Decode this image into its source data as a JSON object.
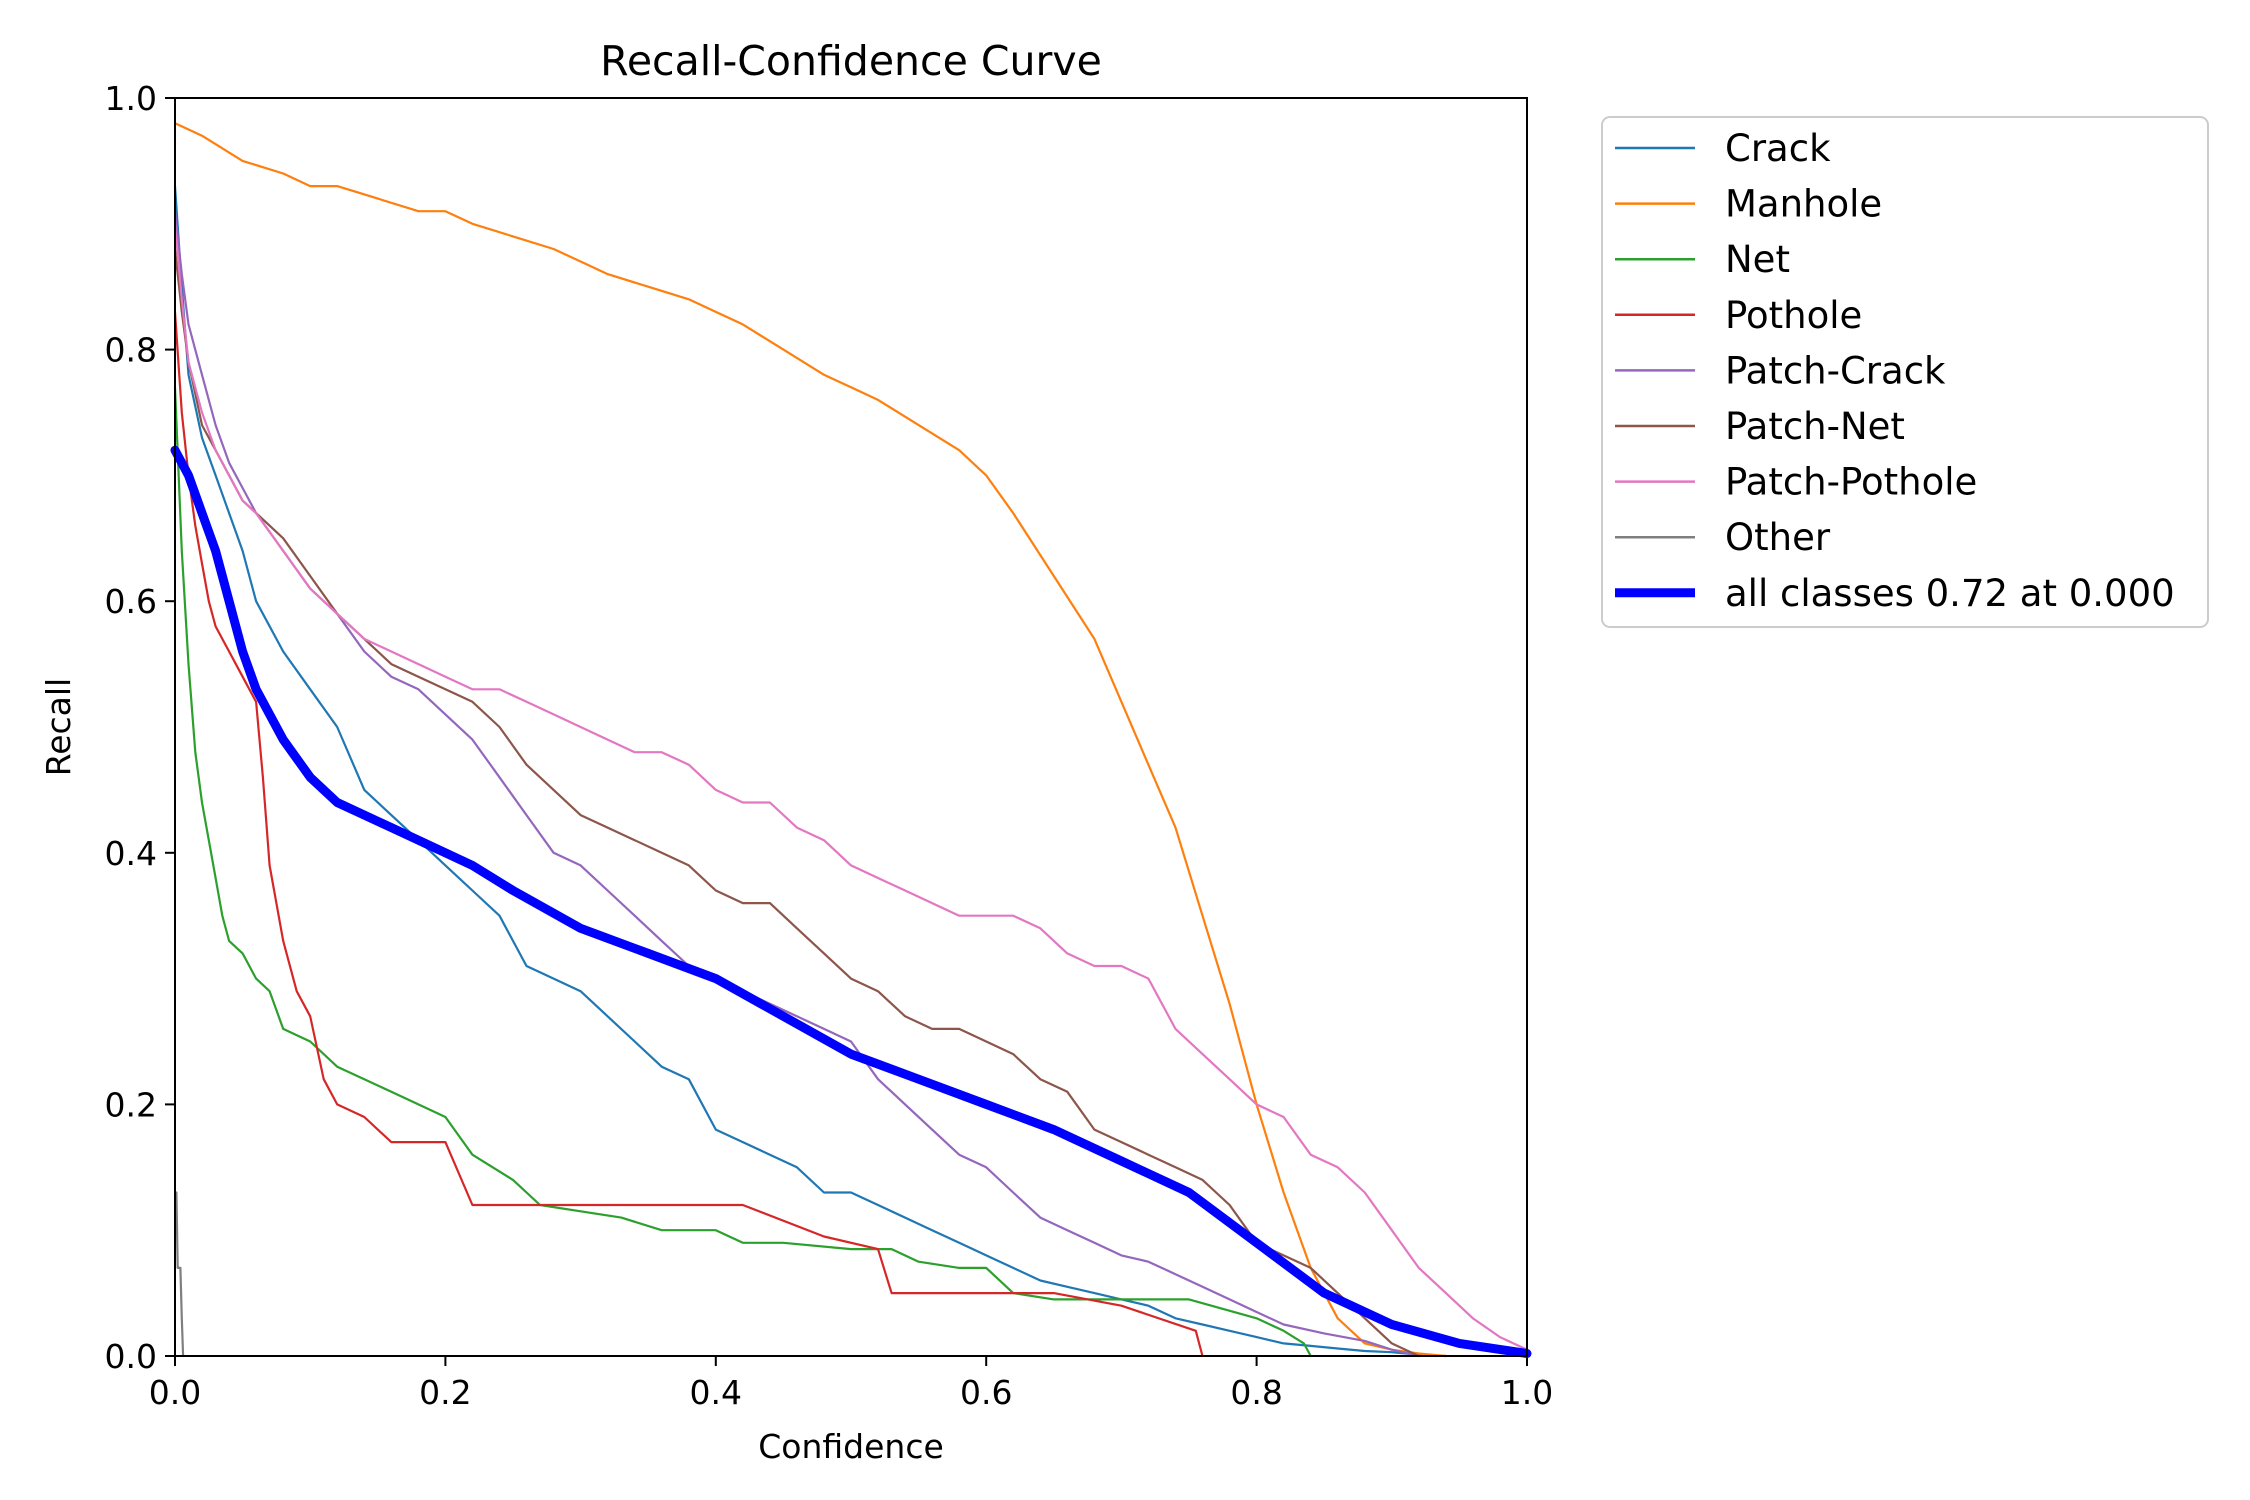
{
  "chart_data": {
    "type": "line",
    "title": "Recall-Confidence Curve",
    "xlabel": "Confidence",
    "ylabel": "Recall",
    "xlim": [
      0.0,
      1.0
    ],
    "ylim": [
      0.0,
      1.0
    ],
    "xticks": [
      "0.0",
      "0.2",
      "0.4",
      "0.6",
      "0.8",
      "1.0"
    ],
    "yticks": [
      "0.0",
      "0.2",
      "0.4",
      "0.6",
      "0.8",
      "1.0"
    ],
    "grid": false,
    "legend_position": "outside-top-right",
    "series": [
      {
        "name": "Crack",
        "color": "#1f77b4",
        "thick": false,
        "x": [
          0.0,
          0.005,
          0.01,
          0.02,
          0.03,
          0.04,
          0.05,
          0.06,
          0.08,
          0.1,
          0.12,
          0.14,
          0.16,
          0.18,
          0.2,
          0.22,
          0.24,
          0.26,
          0.28,
          0.3,
          0.32,
          0.34,
          0.36,
          0.38,
          0.4,
          0.42,
          0.44,
          0.46,
          0.48,
          0.5,
          0.52,
          0.54,
          0.56,
          0.58,
          0.6,
          0.62,
          0.64,
          0.66,
          0.68,
          0.7,
          0.72,
          0.74,
          0.76,
          0.78,
          0.8,
          0.82,
          0.84,
          0.86,
          0.88,
          0.9,
          0.92,
          0.94
        ],
        "y": [
          0.93,
          0.85,
          0.78,
          0.73,
          0.7,
          0.67,
          0.64,
          0.6,
          0.56,
          0.53,
          0.5,
          0.45,
          0.43,
          0.41,
          0.39,
          0.37,
          0.35,
          0.31,
          0.3,
          0.29,
          0.27,
          0.25,
          0.23,
          0.22,
          0.18,
          0.17,
          0.16,
          0.15,
          0.13,
          0.13,
          0.12,
          0.11,
          0.1,
          0.09,
          0.08,
          0.07,
          0.06,
          0.055,
          0.05,
          0.045,
          0.04,
          0.03,
          0.025,
          0.02,
          0.015,
          0.01,
          0.008,
          0.006,
          0.004,
          0.003,
          0.001,
          0.0
        ]
      },
      {
        "name": "Manhole",
        "color": "#ff7f0e",
        "thick": false,
        "x": [
          0.0,
          0.02,
          0.05,
          0.08,
          0.1,
          0.12,
          0.15,
          0.18,
          0.2,
          0.22,
          0.25,
          0.28,
          0.3,
          0.32,
          0.35,
          0.38,
          0.4,
          0.42,
          0.45,
          0.48,
          0.5,
          0.52,
          0.55,
          0.58,
          0.6,
          0.62,
          0.65,
          0.68,
          0.7,
          0.72,
          0.74,
          0.76,
          0.78,
          0.8,
          0.82,
          0.84,
          0.86,
          0.88,
          0.9,
          0.92,
          0.94
        ],
        "y": [
          0.98,
          0.97,
          0.95,
          0.94,
          0.93,
          0.93,
          0.92,
          0.91,
          0.91,
          0.9,
          0.89,
          0.88,
          0.87,
          0.86,
          0.85,
          0.84,
          0.83,
          0.82,
          0.8,
          0.78,
          0.77,
          0.76,
          0.74,
          0.72,
          0.7,
          0.67,
          0.62,
          0.57,
          0.52,
          0.47,
          0.42,
          0.35,
          0.28,
          0.2,
          0.13,
          0.07,
          0.03,
          0.01,
          0.005,
          0.002,
          0.0
        ]
      },
      {
        "name": "Net",
        "color": "#2ca02c",
        "thick": false,
        "x": [
          0.0,
          0.005,
          0.01,
          0.015,
          0.02,
          0.025,
          0.03,
          0.035,
          0.04,
          0.05,
          0.06,
          0.07,
          0.08,
          0.1,
          0.12,
          0.14,
          0.16,
          0.18,
          0.2,
          0.22,
          0.25,
          0.27,
          0.3,
          0.33,
          0.36,
          0.4,
          0.42,
          0.45,
          0.5,
          0.53,
          0.55,
          0.58,
          0.6,
          0.62,
          0.65,
          0.7,
          0.75,
          0.8,
          0.82,
          0.835,
          0.84
        ],
        "y": [
          0.77,
          0.64,
          0.55,
          0.48,
          0.44,
          0.41,
          0.38,
          0.35,
          0.33,
          0.32,
          0.3,
          0.29,
          0.26,
          0.25,
          0.23,
          0.22,
          0.21,
          0.2,
          0.19,
          0.16,
          0.14,
          0.12,
          0.115,
          0.11,
          0.1,
          0.1,
          0.09,
          0.09,
          0.085,
          0.085,
          0.075,
          0.07,
          0.07,
          0.05,
          0.045,
          0.045,
          0.045,
          0.03,
          0.02,
          0.01,
          0.0
        ]
      },
      {
        "name": "Pothole",
        "color": "#d62728",
        "thick": false,
        "x": [
          0.0,
          0.005,
          0.01,
          0.015,
          0.02,
          0.025,
          0.03,
          0.04,
          0.05,
          0.06,
          0.065,
          0.07,
          0.08,
          0.09,
          0.1,
          0.11,
          0.12,
          0.14,
          0.16,
          0.2,
          0.22,
          0.25,
          0.3,
          0.35,
          0.42,
          0.48,
          0.52,
          0.53,
          0.55,
          0.65,
          0.7,
          0.755,
          0.76
        ],
        "y": [
          0.83,
          0.75,
          0.7,
          0.66,
          0.63,
          0.6,
          0.58,
          0.56,
          0.54,
          0.52,
          0.46,
          0.39,
          0.33,
          0.29,
          0.27,
          0.22,
          0.2,
          0.19,
          0.17,
          0.17,
          0.12,
          0.12,
          0.12,
          0.12,
          0.12,
          0.095,
          0.085,
          0.05,
          0.05,
          0.05,
          0.04,
          0.02,
          0.0
        ]
      },
      {
        "name": "Patch-Crack",
        "color": "#9467bd",
        "thick": false,
        "x": [
          0.0,
          0.005,
          0.01,
          0.02,
          0.03,
          0.04,
          0.05,
          0.06,
          0.08,
          0.1,
          0.12,
          0.14,
          0.16,
          0.18,
          0.2,
          0.22,
          0.24,
          0.26,
          0.28,
          0.3,
          0.32,
          0.34,
          0.36,
          0.38,
          0.4,
          0.42,
          0.44,
          0.46,
          0.48,
          0.5,
          0.52,
          0.54,
          0.56,
          0.58,
          0.6,
          0.62,
          0.64,
          0.66,
          0.68,
          0.7,
          0.72,
          0.74,
          0.76,
          0.78,
          0.8,
          0.82,
          0.85,
          0.88,
          0.9,
          0.92
        ],
        "y": [
          0.91,
          0.86,
          0.82,
          0.78,
          0.74,
          0.71,
          0.69,
          0.67,
          0.64,
          0.61,
          0.59,
          0.56,
          0.54,
          0.53,
          0.51,
          0.49,
          0.46,
          0.43,
          0.4,
          0.39,
          0.37,
          0.35,
          0.33,
          0.31,
          0.3,
          0.29,
          0.28,
          0.27,
          0.26,
          0.25,
          0.22,
          0.2,
          0.18,
          0.16,
          0.15,
          0.13,
          0.11,
          0.1,
          0.09,
          0.08,
          0.075,
          0.065,
          0.055,
          0.045,
          0.035,
          0.025,
          0.018,
          0.012,
          0.005,
          0.0
        ]
      },
      {
        "name": "Patch-Net",
        "color": "#8c564b",
        "thick": false,
        "x": [
          0.0,
          0.005,
          0.01,
          0.02,
          0.03,
          0.04,
          0.05,
          0.06,
          0.08,
          0.1,
          0.12,
          0.14,
          0.16,
          0.18,
          0.2,
          0.22,
          0.24,
          0.26,
          0.28,
          0.3,
          0.32,
          0.34,
          0.36,
          0.38,
          0.4,
          0.42,
          0.44,
          0.46,
          0.48,
          0.5,
          0.52,
          0.54,
          0.56,
          0.58,
          0.6,
          0.62,
          0.64,
          0.66,
          0.68,
          0.7,
          0.72,
          0.74,
          0.76,
          0.78,
          0.8,
          0.82,
          0.84,
          0.86,
          0.88,
          0.9,
          0.92
        ],
        "y": [
          0.88,
          0.83,
          0.79,
          0.74,
          0.72,
          0.7,
          0.68,
          0.67,
          0.65,
          0.62,
          0.59,
          0.57,
          0.55,
          0.54,
          0.53,
          0.52,
          0.5,
          0.47,
          0.45,
          0.43,
          0.42,
          0.41,
          0.4,
          0.39,
          0.37,
          0.36,
          0.36,
          0.34,
          0.32,
          0.3,
          0.29,
          0.27,
          0.26,
          0.26,
          0.25,
          0.24,
          0.22,
          0.21,
          0.18,
          0.17,
          0.16,
          0.15,
          0.14,
          0.12,
          0.09,
          0.08,
          0.07,
          0.05,
          0.03,
          0.01,
          0.0
        ]
      },
      {
        "name": "Patch-Pothole",
        "color": "#e377c2",
        "thick": false,
        "x": [
          0.0,
          0.005,
          0.01,
          0.02,
          0.03,
          0.04,
          0.05,
          0.06,
          0.08,
          0.1,
          0.12,
          0.14,
          0.16,
          0.18,
          0.2,
          0.22,
          0.24,
          0.26,
          0.28,
          0.3,
          0.32,
          0.34,
          0.36,
          0.38,
          0.4,
          0.42,
          0.44,
          0.46,
          0.48,
          0.5,
          0.52,
          0.54,
          0.56,
          0.58,
          0.6,
          0.62,
          0.64,
          0.66,
          0.68,
          0.7,
          0.72,
          0.74,
          0.76,
          0.78,
          0.8,
          0.82,
          0.84,
          0.86,
          0.88,
          0.9,
          0.92,
          0.94,
          0.96,
          0.98,
          1.0
        ],
        "y": [
          0.9,
          0.84,
          0.79,
          0.75,
          0.72,
          0.7,
          0.68,
          0.67,
          0.64,
          0.61,
          0.59,
          0.57,
          0.56,
          0.55,
          0.54,
          0.53,
          0.53,
          0.52,
          0.51,
          0.5,
          0.49,
          0.48,
          0.48,
          0.47,
          0.45,
          0.44,
          0.44,
          0.42,
          0.41,
          0.39,
          0.38,
          0.37,
          0.36,
          0.35,
          0.35,
          0.35,
          0.34,
          0.32,
          0.31,
          0.31,
          0.3,
          0.26,
          0.24,
          0.22,
          0.2,
          0.19,
          0.16,
          0.15,
          0.13,
          0.1,
          0.07,
          0.05,
          0.03,
          0.015,
          0.005
        ]
      },
      {
        "name": "Other",
        "color": "#7f7f7f",
        "thick": false,
        "x": [
          0.001,
          0.002,
          0.004,
          0.005,
          0.006
        ],
        "y": [
          0.13,
          0.07,
          0.07,
          0.03,
          0.0
        ]
      },
      {
        "name": "all classes 0.72 at 0.000",
        "color": "#0000ff",
        "thick": true,
        "x": [
          0.0,
          0.01,
          0.02,
          0.03,
          0.04,
          0.05,
          0.06,
          0.08,
          0.1,
          0.12,
          0.14,
          0.16,
          0.18,
          0.2,
          0.22,
          0.25,
          0.3,
          0.35,
          0.4,
          0.45,
          0.5,
          0.55,
          0.6,
          0.65,
          0.7,
          0.75,
          0.8,
          0.85,
          0.9,
          0.95,
          1.0
        ],
        "y": [
          0.72,
          0.7,
          0.67,
          0.64,
          0.6,
          0.56,
          0.53,
          0.49,
          0.46,
          0.44,
          0.43,
          0.42,
          0.41,
          0.4,
          0.39,
          0.37,
          0.34,
          0.32,
          0.3,
          0.27,
          0.24,
          0.22,
          0.2,
          0.18,
          0.155,
          0.13,
          0.09,
          0.05,
          0.025,
          0.01,
          0.002
        ]
      }
    ]
  }
}
